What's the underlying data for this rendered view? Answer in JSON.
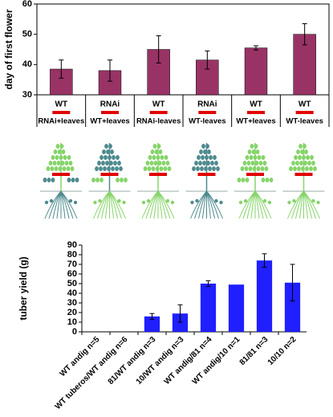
{
  "chart_data": [
    {
      "type": "bar",
      "ylabel": "day of first flower",
      "categories": [
        "WT",
        "RNAi",
        "WT",
        "RNAi",
        "WT",
        "WT"
      ],
      "graft_labels": [
        "RNAi+leaves",
        "WT+leaves",
        "RNAi-leaves",
        "WT-leaves",
        "WT+leaves",
        "WT-leaves"
      ],
      "values": [
        38.5,
        38,
        45,
        41.5,
        45.5,
        50
      ],
      "errors": [
        3,
        3.5,
        4.5,
        3,
        0.7,
        3.5
      ],
      "color": "#993366",
      "ylim": [
        30,
        60
      ],
      "yticks": [
        30,
        40,
        50,
        60
      ]
    },
    {
      "type": "bar",
      "ylabel": "tuber yield (g)",
      "categories": [
        "WT andig n=5",
        "WT tuberos/WT andig n=6",
        "81/WT andig n=3",
        "10/WT andig n=3",
        "WT andig/81 n=4",
        "WT andig/10 n=1",
        "81/81 n=3",
        "10/10 n=2"
      ],
      "values": [
        0,
        0,
        16,
        19,
        50,
        49,
        74,
        51
      ],
      "errors": [
        0,
        0,
        3,
        9,
        3,
        0,
        7,
        19
      ],
      "color": "#1f1fff",
      "ylim": [
        0,
        90
      ],
      "yticks": [
        0,
        10,
        20,
        30,
        40,
        50,
        60,
        70,
        80,
        90
      ]
    }
  ]
}
